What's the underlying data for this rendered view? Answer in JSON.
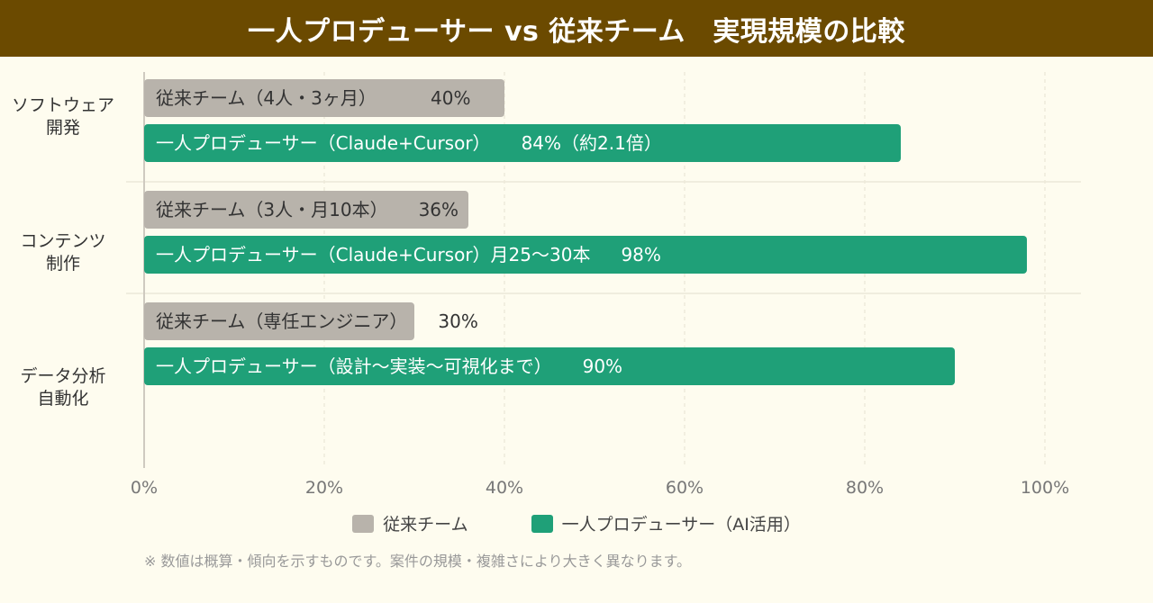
{
  "header": {
    "title": "一人プロデューサー vs 従来チーム　実現規模の比較"
  },
  "colors": {
    "background": "#fefcef",
    "header_bg": "#6b4a00",
    "team": "#b8b3ab",
    "producer": "#1fa078"
  },
  "chart_data": {
    "type": "bar",
    "orientation": "horizontal",
    "title": "一人プロデューサー vs 従来チーム　実現規模の比較",
    "xlim": [
      0,
      100
    ],
    "xticks": [
      "0%",
      "20%",
      "40%",
      "60%",
      "80%",
      "100%"
    ],
    "grid": true,
    "legend_position": "bottom",
    "categories": [
      {
        "label_lines": [
          "ソフトウェア",
          "開発"
        ]
      },
      {
        "label_lines": [
          "コンテンツ",
          "制作"
        ]
      },
      {
        "label_lines": [
          "データ分析",
          "自動化"
        ]
      }
    ],
    "series": [
      {
        "name": "従来チーム",
        "values": [
          40,
          36,
          30
        ],
        "bar_labels": [
          "従来チーム（4人・3ヶ月）",
          "従来チーム（3人・月10本）",
          "従来チーム（専任エンジニア）"
        ],
        "value_labels": [
          "40%",
          "36%",
          "30%"
        ]
      },
      {
        "name": "一人プロデューサー（AI活用）",
        "values": [
          84,
          98,
          90
        ],
        "bar_labels": [
          "一人プロデューサー（Claude+Cursor）",
          "一人プロデューサー（Claude+Cursor）月25〜30本",
          "一人プロデューサー（設計〜実装〜可視化まで）"
        ],
        "value_labels": [
          "84%（約2.1倍）",
          "98%",
          "90%"
        ]
      }
    ]
  },
  "footnote": "※ 数値は概算・傾向を示すものです。案件の規模・複雑さにより大きく異なります。"
}
